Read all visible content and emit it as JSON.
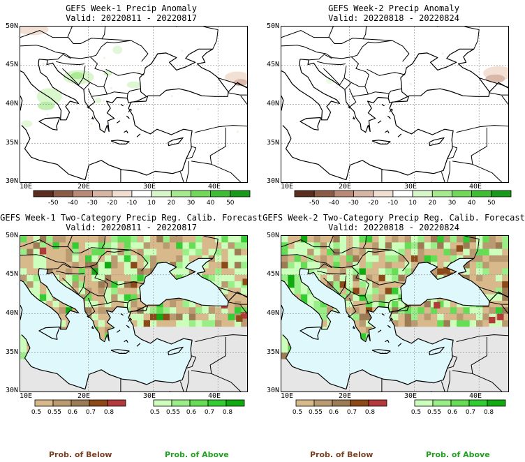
{
  "panels": [
    {
      "title": "GEFS Week-1 Precip Anomaly",
      "valid": "Valid: 20220811 - 20220817"
    },
    {
      "title": "GEFS Week-2 Precip Anomaly",
      "valid": "Valid: 20220818 - 20220824"
    },
    {
      "title": "GEFS Week-1 Two-Category Precip Reg. Calib. Forecast",
      "valid": "Valid: 20220811 - 20220817"
    },
    {
      "title": "GEFS Week-2 Two-Category Precip Reg. Calib. Forecast",
      "valid": "Valid: 20220818 - 20220824"
    }
  ],
  "lat_labels": [
    "50N",
    "45N",
    "40N",
    "35N",
    "30N"
  ],
  "lon_labels": [
    "10E",
    "20E",
    "30E",
    "40E"
  ],
  "anomaly_legend": {
    "labels": [
      "-50",
      "-40",
      "-30",
      "-20",
      "-10",
      "10",
      "20",
      "30",
      "40",
      "50"
    ],
    "colors": [
      "#5a2d1e",
      "#8a5a45",
      "#b88a75",
      "#d6b4a4",
      "#f1ded3",
      "#ffffff",
      "#d6f5c8",
      "#a6e88e",
      "#72d85a",
      "#3fbd34",
      "#179a1a"
    ]
  },
  "below_legend": {
    "labels": [
      "0.5",
      "0.55",
      "0.6",
      "0.7",
      "0.8"
    ],
    "colors": [
      "#d8b98c",
      "#ba9a70",
      "#9c7b55",
      "#8b4a18",
      "#b23a3a"
    ]
  },
  "above_legend": {
    "labels": [
      "0.5",
      "0.55",
      "0.6",
      "0.7",
      "0.8"
    ],
    "colors": [
      "#ccffbb",
      "#99ee88",
      "#66dd55",
      "#33cc33",
      "#11aa11"
    ]
  },
  "footer": {
    "below": "Prob. of Below",
    "above": "Prob. of Above"
  },
  "colors": {
    "sea": "#dff8fc",
    "nodata": "#e6e6e6",
    "below_text": "#7a4022",
    "above_text": "#22a022"
  }
}
